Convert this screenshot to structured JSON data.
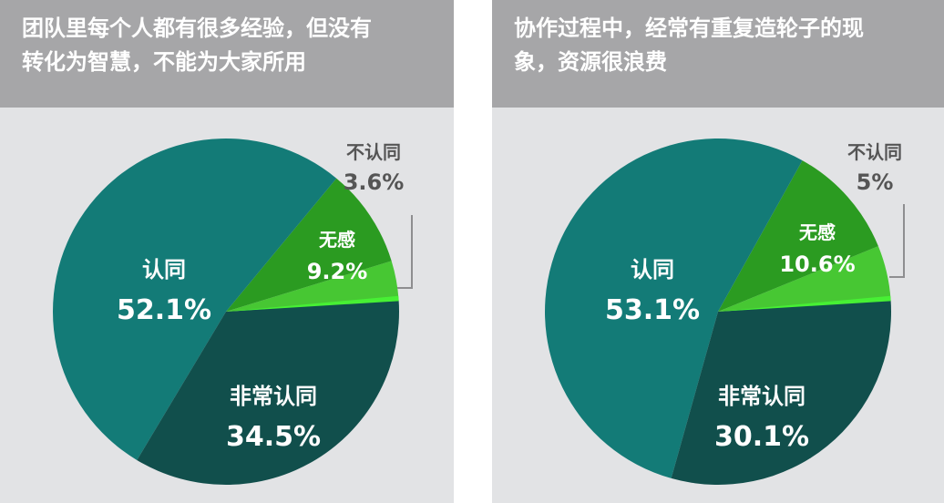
{
  "colors": {
    "background": "#e2e3e5",
    "header": "#a6a6a8",
    "agree": "#137b77",
    "strongly_agree": "#114f4c",
    "neutral": "#2b9b21",
    "disagree": "#47c733",
    "disagree_edge": "#47f034",
    "callout_text": "#555555"
  },
  "chart_data": [
    {
      "type": "pie",
      "title_lines": [
        "团队里每个人都有很多经验，但没有",
        "转化为智慧，不能为大家所用"
      ],
      "slices": [
        {
          "label": "认同",
          "value": 52.1,
          "display": "52.1%",
          "color_key": "agree"
        },
        {
          "label": "非常认同",
          "value": 34.5,
          "display": "34.5%",
          "color_key": "strongly_agree"
        },
        {
          "label": "无感",
          "value": 9.2,
          "display": "9.2%",
          "color_key": "neutral"
        },
        {
          "label": "不认同",
          "value": 3.6,
          "display": "3.6%",
          "color_key": "disagree"
        }
      ]
    },
    {
      "type": "pie",
      "title_lines": [
        "协作过程中，经常有重复造轮子的现",
        "象，资源很浪费"
      ],
      "slices": [
        {
          "label": "认同",
          "value": 53.1,
          "display": "53.1%",
          "color_key": "agree"
        },
        {
          "label": "非常认同",
          "value": 30.1,
          "display": "30.1%",
          "color_key": "strongly_agree"
        },
        {
          "label": "无感",
          "value": 10.6,
          "display": "10.6%",
          "color_key": "neutral"
        },
        {
          "label": "不认同",
          "value": 5,
          "display": "5%",
          "color_key": "disagree"
        }
      ]
    }
  ]
}
